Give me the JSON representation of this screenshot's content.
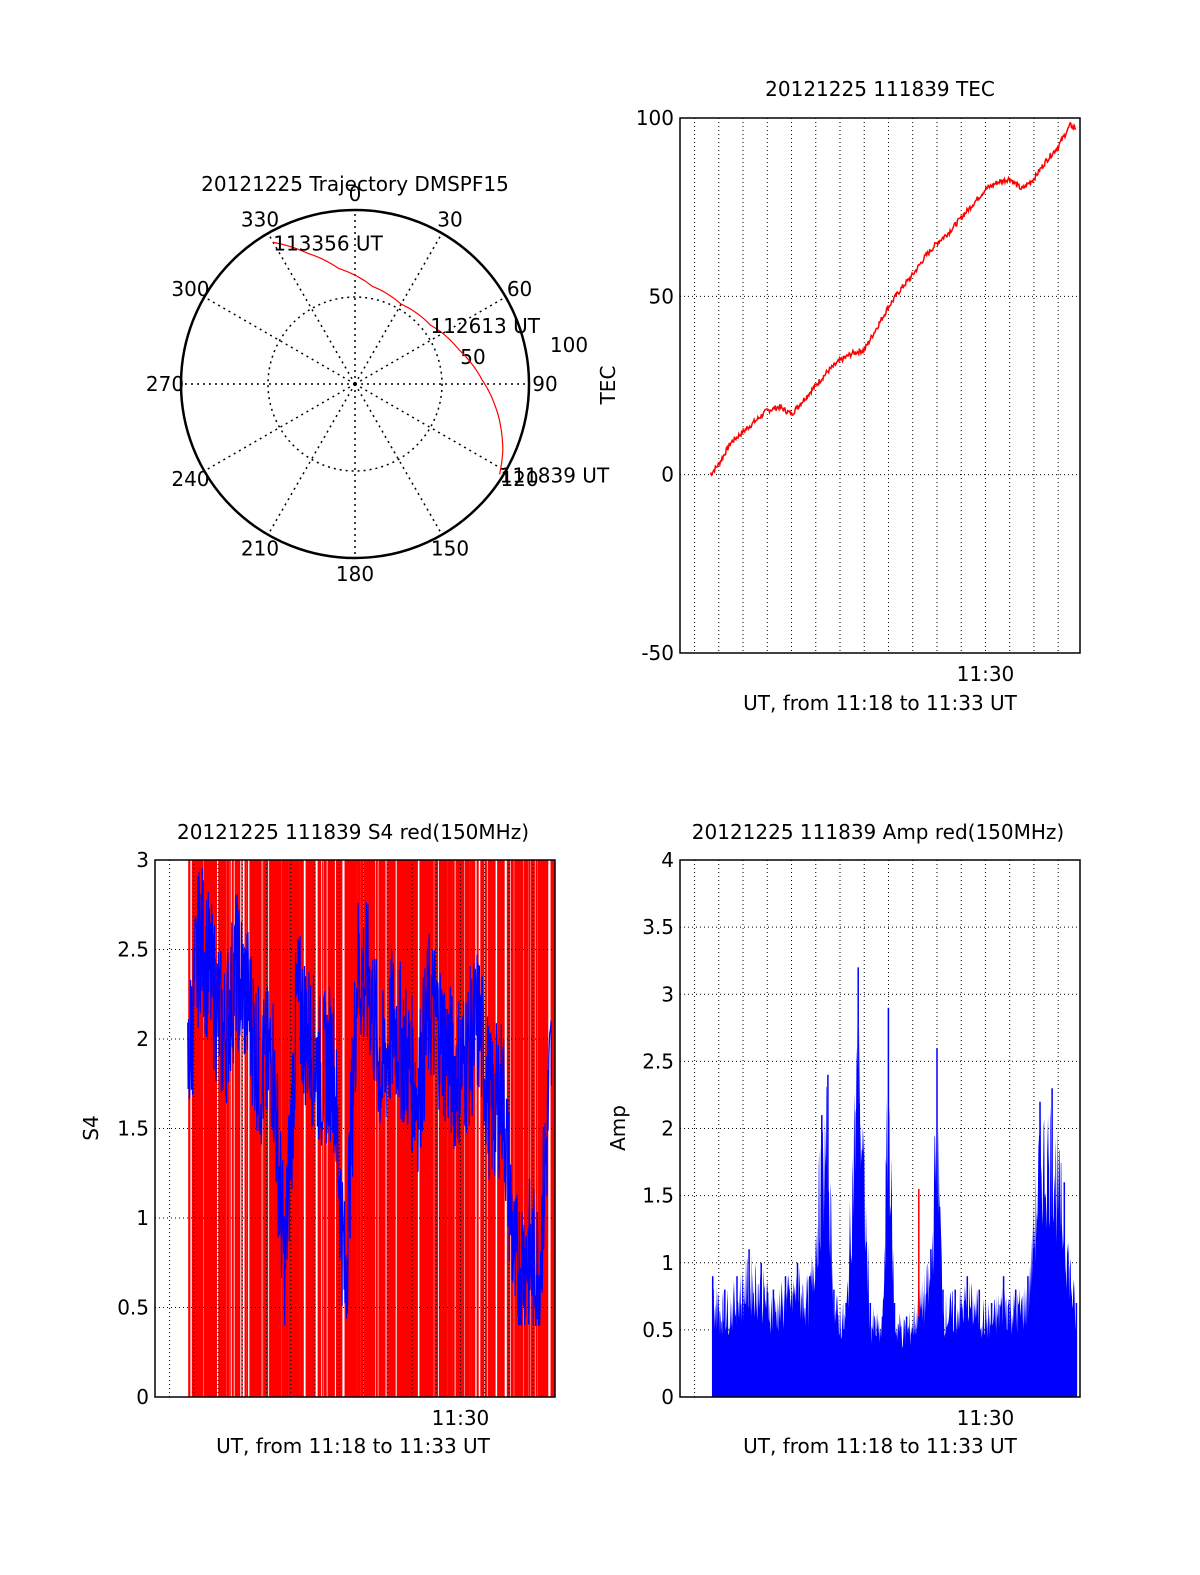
{
  "colors": {
    "trace": "#ff0000",
    "secondary": "#0000ff",
    "axis": "#000000",
    "grid": "#000000",
    "background": "#ffffff"
  },
  "chart_data": [
    {
      "type": "polar",
      "title": "20121225 Trajectory DMSPF15",
      "angle_labels": [
        "0",
        "30",
        "60",
        "90",
        "120",
        "150",
        "180",
        "210",
        "240",
        "270",
        "300",
        "330"
      ],
      "radius_labels": [
        "50",
        "100"
      ],
      "grid": true,
      "trajectory": [
        {
          "az": 330,
          "r": 94
        },
        {
          "az": 340,
          "r": 80
        },
        {
          "az": 352,
          "r": 67
        },
        {
          "az": 10,
          "r": 57
        },
        {
          "az": 30,
          "r": 53
        },
        {
          "az": 52,
          "r": 55
        },
        {
          "az": 72,
          "r": 63
        },
        {
          "az": 88,
          "r": 73
        },
        {
          "az": 102,
          "r": 84
        },
        {
          "az": 114,
          "r": 93
        },
        {
          "az": 122,
          "r": 98
        }
      ],
      "annotations": [
        {
          "text": "113356 UT",
          "az": 330,
          "r": 94
        },
        {
          "text": "112613 UT",
          "az": 52,
          "r": 55
        },
        {
          "text": "111839 UT",
          "az": 122,
          "r": 98
        }
      ]
    },
    {
      "type": "line",
      "title": "20121225 111839 TEC",
      "xlabel": "UT, from 11:18 to 11:33 UT",
      "ylabel": "TEC",
      "xlim": [
        11.29,
        11.565
      ],
      "ylim": [
        -50,
        100
      ],
      "yticks": [
        -50,
        0,
        50,
        100
      ],
      "xticks": [
        {
          "value": 11.5,
          "label": "11:30"
        }
      ],
      "grid": true,
      "series": [
        {
          "color": "#ff0000",
          "x": [
            11.3108,
            11.3167,
            11.325,
            11.3333,
            11.3417,
            11.35,
            11.3583,
            11.3667,
            11.375,
            11.3833,
            11.3917,
            11.4,
            11.4083,
            11.4167,
            11.425,
            11.4333,
            11.4417,
            11.45,
            11.4583,
            11.4667,
            11.475,
            11.4833,
            11.4917,
            11.5,
            11.5083,
            11.5167,
            11.525,
            11.5333,
            11.5417,
            11.55,
            11.5583,
            11.5622
          ],
          "y": [
            0,
            3,
            9,
            12,
            15,
            18,
            19,
            17,
            21,
            25,
            29,
            32,
            34,
            35,
            41,
            47,
            52,
            56,
            61,
            65,
            68,
            72,
            76,
            80,
            82,
            83,
            80,
            83,
            88,
            92,
            98,
            97
          ]
        }
      ]
    },
    {
      "type": "line",
      "title": "20121225 111839 S4 red(150MHz)",
      "xlabel": "UT, from 11:18 to 11:33 UT",
      "ylabel": "S4",
      "xlim": [
        11.29,
        11.565
      ],
      "ylim": [
        0,
        3
      ],
      "yticks": [
        0,
        0.5,
        1,
        1.5,
        2,
        2.5,
        3
      ],
      "xticks": [
        {
          "value": 11.5,
          "label": "11:30"
        }
      ],
      "grid": true,
      "series": [
        {
          "color": "#0000ff",
          "x": [
            11.3125,
            11.3208,
            11.3292,
            11.3375,
            11.3458,
            11.3542,
            11.3625,
            11.3708,
            11.3792,
            11.3875,
            11.3958,
            11.4042,
            11.4125,
            11.4208,
            11.4292,
            11.4375,
            11.4458,
            11.4542,
            11.4625,
            11.4708,
            11.4792,
            11.4875,
            11.4958,
            11.5042,
            11.5125,
            11.5208,
            11.5292,
            11.5375,
            11.5458,
            11.5542,
            11.5625
          ],
          "y": [
            1.8,
            2.6,
            2.3,
            2.0,
            2.4,
            2.2,
            1.8,
            1.9,
            0.7,
            2.2,
            2.0,
            1.8,
            1.9,
            0.6,
            2.4,
            2.3,
            1.8,
            2.1,
            1.9,
            1.7,
            2.2,
            2.0,
            1.8,
            1.9,
            2.1,
            1.6,
            1.7,
            0.7,
            0.8,
            0.7,
            1.9
          ]
        },
        {
          "color": "#ff0000",
          "x": [
            11.3125,
            11.5625
          ],
          "y": [
            0,
            3
          ]
        }
      ]
    },
    {
      "type": "area",
      "title": "20121225 111839 Amp red(150MHz)",
      "xlabel": "UT, from 11:18 to 11:33 UT",
      "ylabel": "Amp",
      "xlim": [
        11.29,
        11.565
      ],
      "ylim": [
        0,
        4
      ],
      "yticks": [
        0,
        0.5,
        1,
        1.5,
        2,
        2.5,
        3,
        3.5,
        4
      ],
      "xticks": [
        {
          "value": 11.5,
          "label": "11:30"
        }
      ],
      "grid": true,
      "series": [
        {
          "color": "#0000ff",
          "x": [
            11.3125,
            11.3208,
            11.3292,
            11.3375,
            11.3458,
            11.3542,
            11.3625,
            11.3708,
            11.3792,
            11.3875,
            11.3917,
            11.3958,
            11.4042,
            11.4125,
            11.4208,
            11.4292,
            11.4333,
            11.4375,
            11.4458,
            11.4542,
            11.4625,
            11.4667,
            11.4708,
            11.4792,
            11.4875,
            11.4958,
            11.5042,
            11.5125,
            11.5208,
            11.5292,
            11.5375,
            11.5458,
            11.5542,
            11.5625
          ],
          "y": [
            0.9,
            0.8,
            0.9,
            1.1,
            1.0,
            0.8,
            0.9,
            1.0,
            0.9,
            2.1,
            2.4,
            0.8,
            0.7,
            3.2,
            0.7,
            0.6,
            2.9,
            0.7,
            0.6,
            0.8,
            1.1,
            2.6,
            0.8,
            0.8,
            0.9,
            0.8,
            0.7,
            0.9,
            0.8,
            0.9,
            2.2,
            2.3,
            1.6,
            0.7
          ]
        },
        {
          "color": "#ff0000",
          "x": [
            11.4542
          ],
          "y": [
            1.55
          ]
        }
      ]
    }
  ]
}
